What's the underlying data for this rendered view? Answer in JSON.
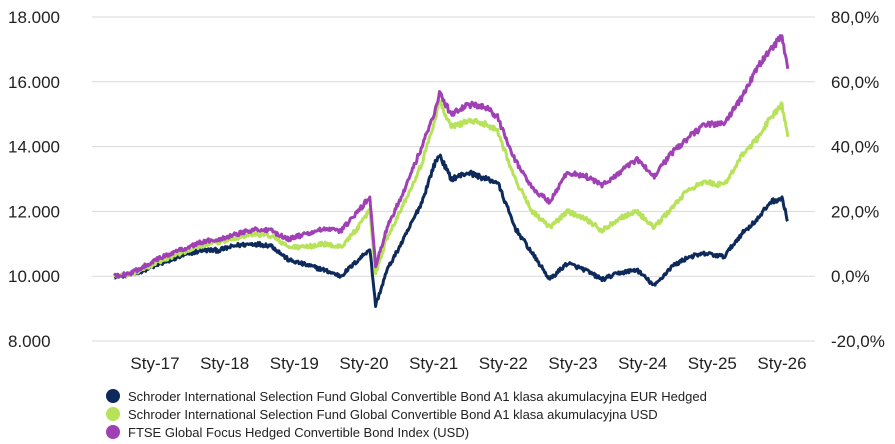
{
  "chart_data": {
    "type": "line",
    "title": "",
    "xlabel": "",
    "ylabel": "",
    "x_tick_labels": [
      "Sty-17",
      "Sty-18",
      "Sty-19",
      "Sty-20",
      "Sty-21",
      "Sty-22",
      "Sty-23",
      "Sty-24",
      "Sty-25",
      "Sty-26"
    ],
    "y_left": {
      "ylim": [
        8000,
        18000
      ],
      "tick_labels": [
        "18.000",
        "16.000",
        "14.000",
        "12.000",
        "10.000",
        "8.000"
      ]
    },
    "y_right": {
      "ylim": [
        -20,
        80
      ],
      "unit": "%",
      "tick_labels": [
        "80,0%",
        "60,0%",
        "40,0%",
        "20,0%",
        "0,0%",
        "-20,0%"
      ]
    },
    "grid": "horizontal",
    "legend_position": "bottom",
    "x_dates": [
      "2016-06",
      "2016-09",
      "2016-12",
      "2017-03",
      "2017-06",
      "2017-09",
      "2017-12",
      "2018-03",
      "2018-06",
      "2018-09",
      "2018-12",
      "2019-03",
      "2019-06",
      "2019-09",
      "2019-12",
      "2020-02",
      "2020-03",
      "2020-05",
      "2020-08",
      "2020-11",
      "2021-01",
      "2021-02",
      "2021-04",
      "2021-07",
      "2021-10",
      "2021-12",
      "2022-03",
      "2022-06",
      "2022-09",
      "2022-12",
      "2023-03",
      "2023-06",
      "2023-09",
      "2023-12",
      "2024-03",
      "2024-06",
      "2024-09",
      "2024-12",
      "2025-03",
      "2025-06",
      "2025-09",
      "2025-11",
      "2026-01",
      "2026-02"
    ],
    "series": [
      {
        "name": "Schroder International Selection Fund Global Convertible Bond A1 klasa akumulacyjna EUR Hedged",
        "color": "#0e2a5a",
        "values": [
          10000,
          10050,
          10250,
          10450,
          10650,
          10800,
          10800,
          10950,
          11000,
          10950,
          10500,
          10350,
          10200,
          10000,
          10500,
          10850,
          9100,
          10200,
          11200,
          12300,
          13400,
          13750,
          13000,
          13200,
          13000,
          12900,
          11500,
          10700,
          9900,
          10400,
          10200,
          9900,
          10100,
          10200,
          9700,
          10300,
          10600,
          10700,
          10600,
          11300,
          11800,
          12300,
          12400,
          11700
        ]
      },
      {
        "name": "Schroder International Selection Fund Global Convertible Bond A1 klasa akumulacyjna USD",
        "color": "#b7e25a",
        "values": [
          10000,
          10050,
          10300,
          10550,
          10750,
          10950,
          11050,
          11200,
          11300,
          11250,
          10900,
          10900,
          11000,
          10900,
          11500,
          12050,
          10100,
          11200,
          12300,
          13500,
          14700,
          15400,
          14600,
          14800,
          14700,
          14500,
          13000,
          12000,
          11500,
          12000,
          11800,
          11400,
          11800,
          12000,
          11500,
          12100,
          12700,
          12900,
          12800,
          13700,
          14300,
          14900,
          15300,
          14300
        ]
      },
      {
        "name": "FTSE Global Focus Hedged Convertible Bond Index (USD)",
        "color": "#a040b5",
        "values": [
          10000,
          10100,
          10400,
          10650,
          10850,
          11050,
          11150,
          11300,
          11450,
          11400,
          11150,
          11300,
          11450,
          11400,
          12000,
          12450,
          10300,
          11500,
          12700,
          14000,
          15000,
          15650,
          15000,
          15300,
          15200,
          14900,
          13600,
          12700,
          12300,
          13200,
          13100,
          12800,
          13200,
          13600,
          13100,
          13800,
          14300,
          14700,
          14700,
          15500,
          16500,
          17000,
          17400,
          16400
        ]
      }
    ]
  }
}
